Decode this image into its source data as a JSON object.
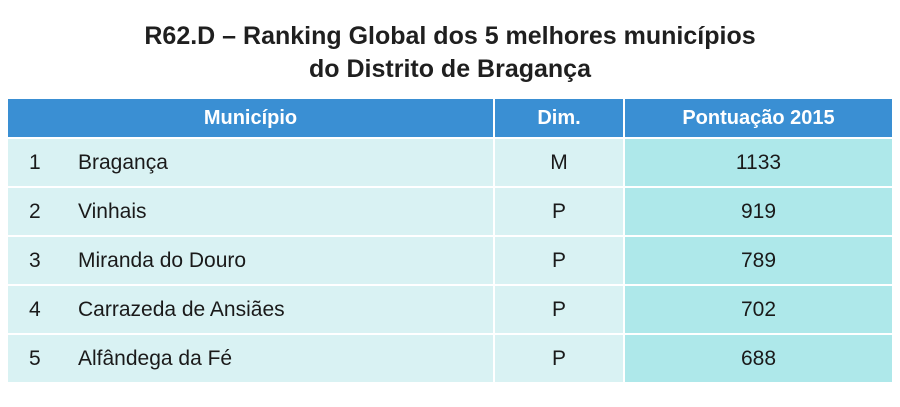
{
  "title": {
    "line1": "R62.D – Ranking Global dos 5 melhores municípios",
    "line2": "do Distrito de Bragança"
  },
  "table": {
    "headers": {
      "municipio": "Município",
      "dim": "Dim.",
      "pontuacao": "Pontuação 2015"
    },
    "rows": [
      {
        "rank": "1",
        "name": "Bragança",
        "dim": "M",
        "score": "1133"
      },
      {
        "rank": "2",
        "name": "Vinhais",
        "dim": "P",
        "score": "919"
      },
      {
        "rank": "3",
        "name": "Miranda do Douro",
        "dim": "P",
        "score": "789"
      },
      {
        "rank": "4",
        "name": "Carrazeda de Ansiães",
        "dim": "P",
        "score": "702"
      },
      {
        "rank": "5",
        "name": "Alfândega da Fé",
        "dim": "P",
        "score": "688"
      }
    ]
  },
  "colors": {
    "header_bg": "#3a8fd3",
    "row_bg": "#d9f2f3",
    "score_bg": "#aee8ea"
  }
}
